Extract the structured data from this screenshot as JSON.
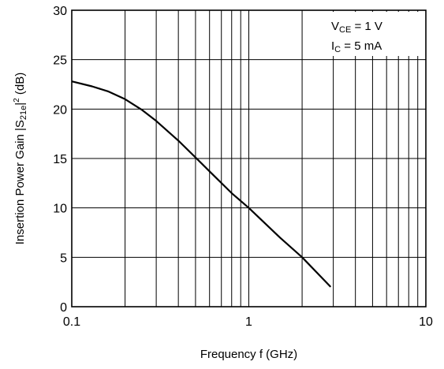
{
  "chart_data": {
    "type": "line",
    "xlabel": "Frequency  f (GHz)",
    "ylabel": {
      "prefix": "Insertion Power Gain  |S",
      "sub": "21e",
      "mid": "|",
      "sup": "2",
      "suffix": " (dB)"
    },
    "xscale": "log",
    "xlim": [
      0.1,
      10
    ],
    "ylim": [
      0,
      30
    ],
    "grid": true,
    "x_ticks": [
      0.1,
      1,
      10
    ],
    "x_tick_labels": [
      "0.1",
      "1",
      "10"
    ],
    "y_ticks": [
      0,
      5,
      10,
      15,
      20,
      25,
      30
    ],
    "y_tick_labels": [
      "0",
      "5",
      "10",
      "15",
      "20",
      "25",
      "30"
    ],
    "annotation": {
      "line1": {
        "main": "V",
        "sub": "CE",
        "rest": " = 1 V"
      },
      "line2": {
        "main": "I",
        "sub": "C",
        "rest": " = 5 mA"
      }
    },
    "series": [
      {
        "x": [
          0.1,
          0.13,
          0.16,
          0.2,
          0.25,
          0.3,
          0.4,
          0.5,
          0.6,
          0.8,
          1.0,
          1.5,
          2.0,
          2.9
        ],
        "y": [
          22.8,
          22.3,
          21.8,
          21.0,
          19.9,
          18.8,
          16.8,
          15.1,
          13.7,
          11.5,
          10.0,
          7.0,
          5.0,
          2.0
        ]
      }
    ]
  }
}
